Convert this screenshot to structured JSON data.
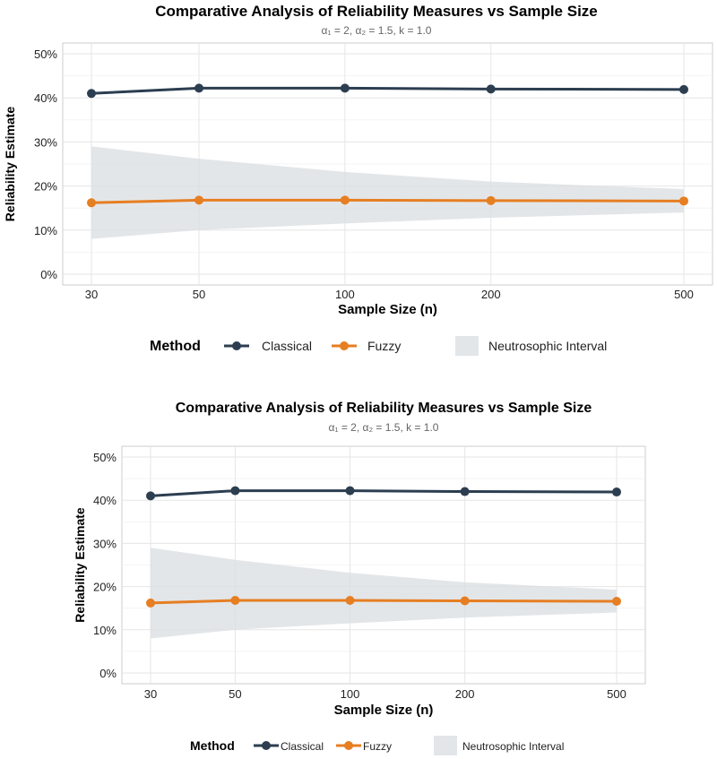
{
  "chart_data": [
    {
      "type": "line",
      "title": "Comparative Analysis of Reliability Measures vs Sample Size",
      "subtitle": "α₁ = 2, α₂ = 1.5, k = 1.0",
      "xlabel": "Sample Size (n)",
      "ylabel": "Reliability Estimate",
      "x_scale": "log",
      "x": [
        30,
        50,
        100,
        200,
        500
      ],
      "x_tick_labels": [
        "30",
        "50",
        "100",
        "200",
        "500"
      ],
      "y_ticks": [
        "0%",
        "10%",
        "20%",
        "30%",
        "40%",
        "50%"
      ],
      "ylim": [
        0,
        0.5
      ],
      "grid": true,
      "series": [
        {
          "name": "Classical",
          "values": [
            0.41,
            0.422,
            0.422,
            0.42,
            0.419
          ],
          "color": "#2c3e50"
        },
        {
          "name": "Fuzzy",
          "values": [
            0.162,
            0.168,
            0.168,
            0.167,
            0.166
          ],
          "color": "#e67e22"
        }
      ],
      "band": {
        "name": "Neutrosophic Interval",
        "lower": [
          0.08,
          0.1,
          0.115,
          0.128,
          0.14
        ],
        "upper": [
          0.29,
          0.262,
          0.232,
          0.21,
          0.193
        ],
        "color": "#d9dde0"
      },
      "legend_title": "Method",
      "legend_position": "bottom"
    },
    {
      "type": "line",
      "title": "Comparative Analysis of Reliability Measures vs Sample Size",
      "subtitle": "α₁ = 2, α₂ = 1.5, k = 1.0",
      "xlabel": "Sample Size (n)",
      "ylabel": "Reliability Estimate",
      "x_scale": "log",
      "x": [
        30,
        50,
        100,
        200,
        500
      ],
      "x_tick_labels": [
        "30",
        "50",
        "100",
        "200",
        "500"
      ],
      "y_ticks": [
        "0%",
        "10%",
        "20%",
        "30%",
        "40%",
        "50%"
      ],
      "ylim": [
        0,
        0.5
      ],
      "grid": true,
      "series": [
        {
          "name": "Classical",
          "values": [
            0.41,
            0.422,
            0.422,
            0.42,
            0.419
          ],
          "color": "#2c3e50"
        },
        {
          "name": "Fuzzy",
          "values": [
            0.162,
            0.168,
            0.168,
            0.167,
            0.166
          ],
          "color": "#e67e22"
        }
      ],
      "band": {
        "name": "Neutrosophic Interval",
        "lower": [
          0.08,
          0.1,
          0.115,
          0.128,
          0.14
        ],
        "upper": [
          0.29,
          0.262,
          0.232,
          0.21,
          0.193
        ],
        "color": "#d9dde0"
      },
      "legend_title": "Method",
      "legend_position": "bottom"
    }
  ]
}
